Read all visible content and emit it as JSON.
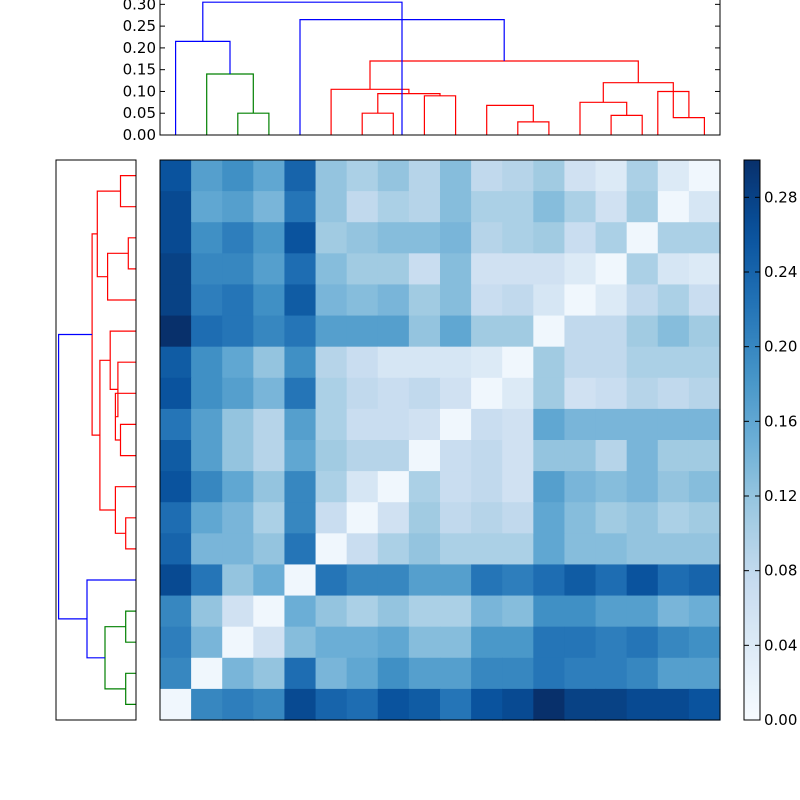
{
  "chart_data": [
    {
      "type": "dendrogram",
      "panel": "top",
      "ylim": [
        0,
        0.31
      ],
      "yticks": [
        "0.00",
        "0.05",
        "0.10",
        "0.15",
        "0.20",
        "0.25",
        "0.30"
      ],
      "leaves": 18,
      "link_colors": {
        "root": "#0000ff",
        "cluster_a": "#008000",
        "cluster_b": "#ff0000"
      },
      "links": [
        {
          "a": 2.0,
          "b": 3.0,
          "h": 0.05,
          "c": "g"
        },
        {
          "a": 1.0,
          "b": 2.5,
          "h": 0.14,
          "c": "g"
        },
        {
          "a": 0.0,
          "b": 1.75,
          "h": 0.215,
          "c": "b"
        },
        {
          "a": 6.0,
          "b": 7.0,
          "h": 0.05,
          "c": "r"
        },
        {
          "a": 11.0,
          "b": 12.0,
          "h": 0.03,
          "c": "r"
        },
        {
          "a": 10.0,
          "b": 11.5,
          "h": 0.068,
          "c": "r"
        },
        {
          "a": 8.0,
          "b": 9.0,
          "h": 0.09,
          "c": "r"
        },
        {
          "a": 6.5,
          "b": 8.5,
          "h": 0.095,
          "c": "r"
        },
        {
          "a": 5.0,
          "b": 7.5,
          "h": 0.105,
          "c": "r"
        },
        {
          "a": 14.0,
          "b": 15.0,
          "h": 0.045,
          "c": "r"
        },
        {
          "a": 13.0,
          "b": 14.5,
          "h": 0.075,
          "c": "r"
        },
        {
          "a": 16.0,
          "b": 17.0,
          "h": 0.04,
          "c": "r"
        },
        {
          "a": 15.5,
          "b": 16.5,
          "h": 0.1,
          "c": "r"
        },
        {
          "a": 13.75,
          "b": 16.0,
          "h": 0.12,
          "c": "r"
        },
        {
          "a": 6.25,
          "b": 14.875,
          "h": 0.17,
          "c": "r"
        },
        {
          "a": 4.0,
          "b": 10.5625,
          "h": 0.265,
          "c": "b"
        },
        {
          "a": 0.875,
          "b": 7.28,
          "h": 0.305,
          "c": "b"
        }
      ]
    },
    {
      "type": "dendrogram",
      "panel": "left",
      "orientation": "left",
      "leaves": 18,
      "xlim": [
        0.31,
        0
      ],
      "links": [
        {
          "a": 0.0,
          "b": 1.0,
          "h": 0.04,
          "c": "g"
        },
        {
          "a": 2.0,
          "b": 3.0,
          "h": 0.04,
          "c": "g"
        },
        {
          "a": 0.5,
          "b": 2.5,
          "h": 0.12,
          "c": "g"
        },
        {
          "a": 4.0,
          "b": 1.5,
          "h": 0.19,
          "c": "b"
        },
        {
          "a": 5.0,
          "b": 6.0,
          "h": 0.04,
          "c": "r"
        },
        {
          "a": 5.5,
          "b": 7.0,
          "h": 0.08,
          "c": "r"
        },
        {
          "a": 8.0,
          "b": 9.0,
          "h": 0.06,
          "c": "r"
        },
        {
          "a": 10.0,
          "b": 8.5,
          "h": 0.08,
          "c": "r"
        },
        {
          "a": 11.0,
          "b": 9.25,
          "h": 0.07,
          "c": "r"
        },
        {
          "a": 12.0,
          "b": 10.125,
          "h": 0.1,
          "c": "r"
        },
        {
          "a": 6.25,
          "b": 11.0625,
          "h": 0.14,
          "c": "r"
        },
        {
          "a": 14.0,
          "b": 15.0,
          "h": 0.03,
          "c": "r"
        },
        {
          "a": 16.0,
          "b": 17.0,
          "h": 0.06,
          "c": "r"
        },
        {
          "a": 13.0,
          "b": 14.5,
          "h": 0.11,
          "c": "r"
        },
        {
          "a": 13.75,
          "b": 16.5,
          "h": 0.15,
          "c": "r"
        },
        {
          "a": 8.65625,
          "b": 15.125,
          "h": 0.17,
          "c": "r"
        },
        {
          "a": 2.75,
          "b": 11.890625,
          "h": 0.3,
          "c": "b"
        }
      ]
    },
    {
      "type": "heatmap",
      "panel": "main",
      "rows": 18,
      "cols": 18,
      "vmin": 0,
      "vmax": 0.3,
      "colormap": "Blues",
      "values": [
        [
          0.26,
          0.17,
          0.19,
          0.16,
          0.24,
          0.12,
          0.1,
          0.12,
          0.09,
          0.13,
          0.08,
          0.09,
          0.11,
          0.06,
          0.04,
          0.1,
          0.04,
          0.01
        ],
        [
          0.27,
          0.16,
          0.17,
          0.14,
          0.22,
          0.12,
          0.08,
          0.1,
          0.09,
          0.13,
          0.1,
          0.1,
          0.13,
          0.1,
          0.06,
          0.11,
          0.01,
          0.05
        ],
        [
          0.27,
          0.19,
          0.21,
          0.18,
          0.26,
          0.11,
          0.12,
          0.13,
          0.13,
          0.14,
          0.09,
          0.1,
          0.11,
          0.07,
          0.1,
          0.01,
          0.1,
          0.1
        ],
        [
          0.28,
          0.2,
          0.2,
          0.17,
          0.23,
          0.13,
          0.11,
          0.11,
          0.07,
          0.13,
          0.06,
          0.06,
          0.06,
          0.04,
          0.01,
          0.1,
          0.05,
          0.04
        ],
        [
          0.28,
          0.21,
          0.22,
          0.19,
          0.25,
          0.14,
          0.13,
          0.14,
          0.11,
          0.13,
          0.07,
          0.08,
          0.05,
          0.01,
          0.04,
          0.08,
          0.1,
          0.07
        ],
        [
          0.3,
          0.23,
          0.22,
          0.2,
          0.22,
          0.17,
          0.17,
          0.17,
          0.12,
          0.16,
          0.11,
          0.11,
          0.01,
          0.08,
          0.08,
          0.11,
          0.13,
          0.11
        ],
        [
          0.25,
          0.19,
          0.16,
          0.12,
          0.19,
          0.09,
          0.07,
          0.05,
          0.05,
          0.05,
          0.04,
          0.01,
          0.11,
          0.08,
          0.08,
          0.1,
          0.1,
          0.1
        ],
        [
          0.26,
          0.19,
          0.17,
          0.14,
          0.22,
          0.1,
          0.08,
          0.07,
          0.08,
          0.06,
          0.01,
          0.04,
          0.11,
          0.06,
          0.07,
          0.09,
          0.08,
          0.09
        ],
        [
          0.22,
          0.17,
          0.12,
          0.09,
          0.17,
          0.1,
          0.07,
          0.07,
          0.06,
          0.01,
          0.07,
          0.06,
          0.16,
          0.14,
          0.14,
          0.14,
          0.14,
          0.14
        ],
        [
          0.25,
          0.17,
          0.12,
          0.09,
          0.16,
          0.11,
          0.09,
          0.09,
          0.01,
          0.07,
          0.08,
          0.06,
          0.12,
          0.12,
          0.09,
          0.14,
          0.11,
          0.11
        ],
        [
          0.26,
          0.2,
          0.16,
          0.12,
          0.2,
          0.1,
          0.05,
          0.01,
          0.1,
          0.07,
          0.08,
          0.06,
          0.17,
          0.14,
          0.13,
          0.14,
          0.12,
          0.13
        ],
        [
          0.23,
          0.16,
          0.14,
          0.1,
          0.2,
          0.07,
          0.01,
          0.06,
          0.11,
          0.08,
          0.09,
          0.08,
          0.16,
          0.13,
          0.11,
          0.12,
          0.1,
          0.11
        ],
        [
          0.24,
          0.14,
          0.14,
          0.12,
          0.22,
          0.01,
          0.07,
          0.1,
          0.12,
          0.1,
          0.1,
          0.1,
          0.16,
          0.13,
          0.13,
          0.12,
          0.12,
          0.12
        ],
        [
          0.27,
          0.22,
          0.12,
          0.15,
          0.01,
          0.22,
          0.2,
          0.2,
          0.17,
          0.17,
          0.22,
          0.21,
          0.23,
          0.25,
          0.23,
          0.26,
          0.23,
          0.24
        ],
        [
          0.2,
          0.12,
          0.06,
          0.01,
          0.15,
          0.12,
          0.1,
          0.12,
          0.1,
          0.1,
          0.14,
          0.13,
          0.19,
          0.19,
          0.17,
          0.17,
          0.14,
          0.15
        ],
        [
          0.21,
          0.14,
          0.01,
          0.06,
          0.13,
          0.15,
          0.15,
          0.16,
          0.13,
          0.13,
          0.18,
          0.18,
          0.22,
          0.22,
          0.21,
          0.22,
          0.2,
          0.19
        ],
        [
          0.2,
          0.01,
          0.14,
          0.12,
          0.23,
          0.14,
          0.16,
          0.19,
          0.17,
          0.17,
          0.2,
          0.2,
          0.22,
          0.21,
          0.21,
          0.2,
          0.17,
          0.17
        ],
        [
          0.01,
          0.2,
          0.21,
          0.2,
          0.27,
          0.24,
          0.23,
          0.26,
          0.25,
          0.22,
          0.26,
          0.27,
          0.3,
          0.28,
          0.28,
          0.27,
          0.27,
          0.26
        ]
      ]
    },
    {
      "type": "colorbar",
      "panel": "right",
      "ylim": [
        0,
        0.3
      ],
      "ticks": [
        "0.00",
        "0.04",
        "0.08",
        "0.12",
        "0.16",
        "0.20",
        "0.24",
        "0.28"
      ],
      "colormap": "Blues"
    }
  ],
  "colors": {
    "cmap_low": "#f7fbff",
    "cmap_high": "#08306b",
    "axis": "#000000"
  }
}
